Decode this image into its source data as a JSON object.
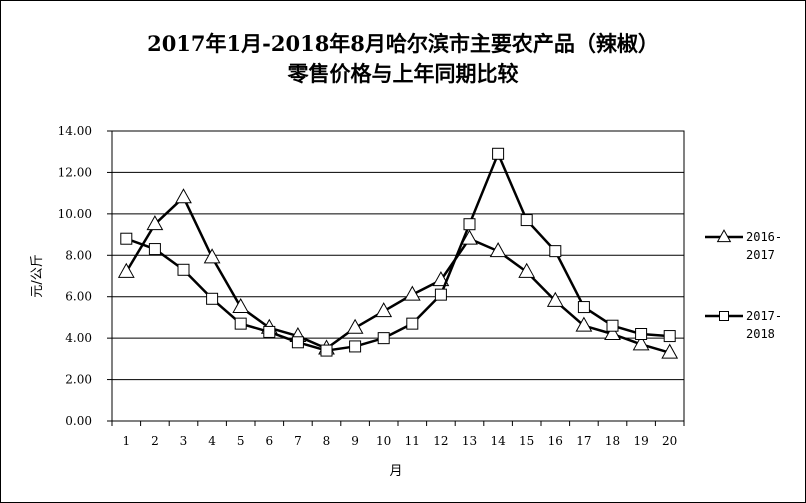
{
  "chart_data": {
    "type": "line",
    "title": [
      "2017年1月-2018年8月哈尔滨市主要农产品（辣椒）",
      "零售价格与上年同期比较"
    ],
    "xlabel": "月",
    "ylabel": "元/公斤",
    "ylim": [
      0,
      14
    ],
    "yticks": [
      "0.00",
      "2.00",
      "4.00",
      "6.00",
      "8.00",
      "10.00",
      "12.00",
      "14.00"
    ],
    "categories": [
      "1",
      "2",
      "3",
      "4",
      "5",
      "6",
      "7",
      "8",
      "9",
      "10",
      "11",
      "12",
      "13",
      "14",
      "15",
      "16",
      "17",
      "18",
      "19",
      "20"
    ],
    "grid": true,
    "legend_position": "right",
    "series": [
      {
        "name": [
          "2016-",
          "2017"
        ],
        "marker": "triangle",
        "color": "#000000",
        "values": [
          7.2,
          9.5,
          10.8,
          7.9,
          5.5,
          4.5,
          4.1,
          3.5,
          4.5,
          5.3,
          6.1,
          6.8,
          8.8,
          8.2,
          7.2,
          5.8,
          4.6,
          4.2,
          3.7,
          3.3
        ]
      },
      {
        "name": [
          "2017-",
          "2018"
        ],
        "marker": "square",
        "color": "#000000",
        "values": [
          8.8,
          8.3,
          7.3,
          5.9,
          4.7,
          4.3,
          3.8,
          3.4,
          3.6,
          4.0,
          4.7,
          6.1,
          9.5,
          12.9,
          9.7,
          8.2,
          5.5,
          4.6,
          4.2,
          4.1
        ]
      }
    ]
  }
}
